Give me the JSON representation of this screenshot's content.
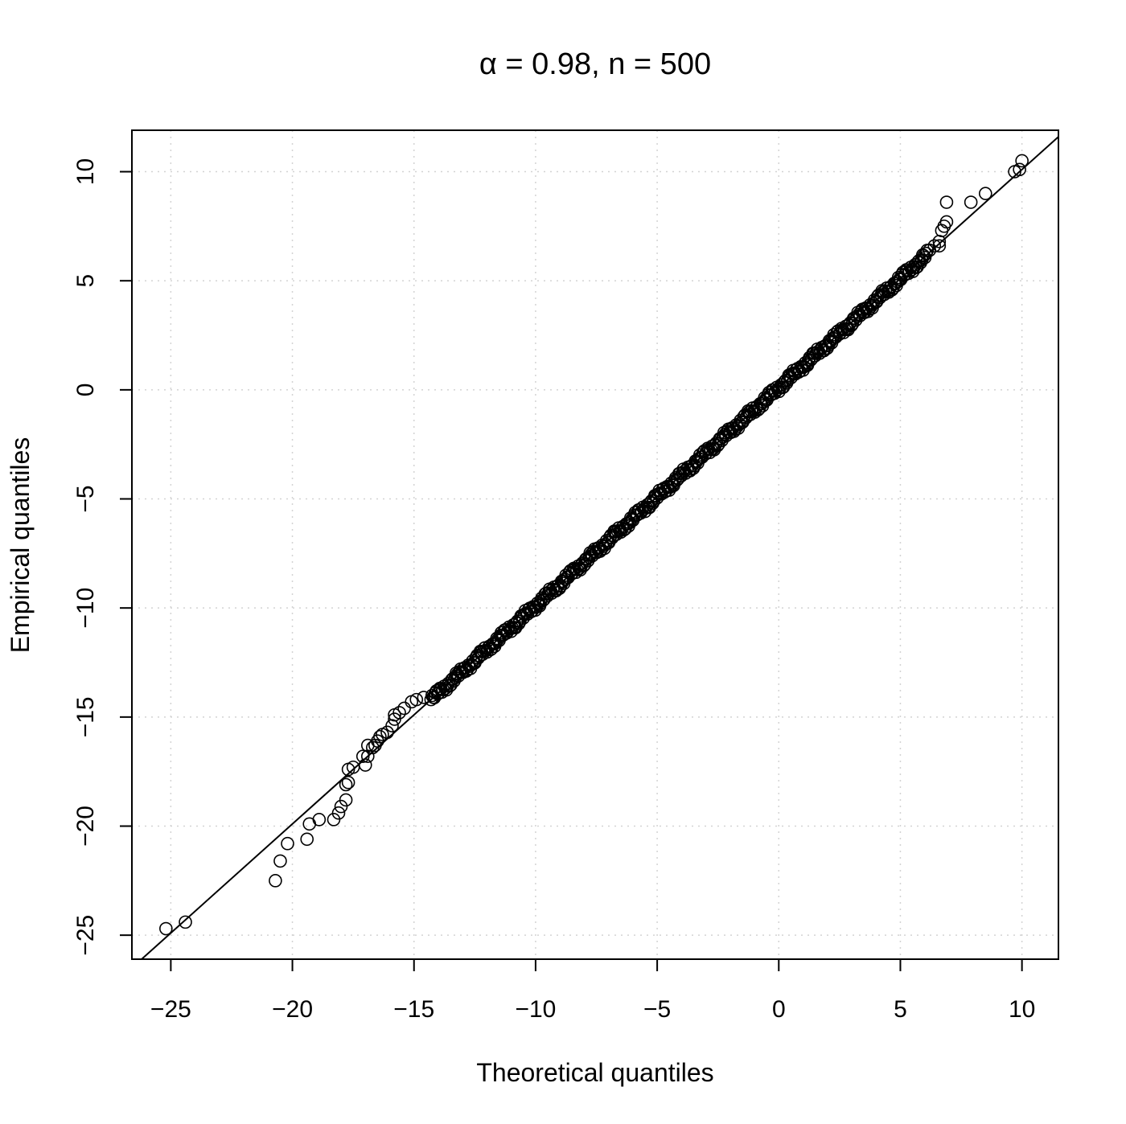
{
  "chart_data": {
    "type": "scatter",
    "title": "α = 0.98, n = 500",
    "xlabel": "Theoretical quantiles",
    "ylabel": "Empirical quantiles",
    "xlim": [
      -26.6,
      11.5
    ],
    "ylim": [
      -26.1,
      11.9
    ],
    "xticks": [
      -25,
      -20,
      -15,
      -10,
      -5,
      0,
      5,
      10
    ],
    "xtick_labels": [
      "−25",
      "−20",
      "−15",
      "−10",
      "−5",
      "0",
      "5",
      "10"
    ],
    "yticks": [
      -25,
      -20,
      -15,
      -10,
      -5,
      0,
      5,
      10
    ],
    "ytick_labels": [
      "−25",
      "−20",
      "−15",
      "−10",
      "−5",
      "0",
      "5",
      "10"
    ],
    "grid": true,
    "reference_line": {
      "intercept": 0.1,
      "slope": 1.0
    },
    "n_points": 500,
    "body_range": {
      "x": [
        -14.3,
        6.1
      ]
    },
    "outlier_points": [
      {
        "x": -25.2,
        "y": -24.7
      },
      {
        "x": -24.4,
        "y": -24.4
      },
      {
        "x": -20.7,
        "y": -22.5
      },
      {
        "x": -20.5,
        "y": -21.6
      },
      {
        "x": -20.2,
        "y": -20.8
      },
      {
        "x": -19.4,
        "y": -20.6
      },
      {
        "x": -19.3,
        "y": -19.9
      },
      {
        "x": -18.9,
        "y": -19.7
      },
      {
        "x": -18.3,
        "y": -19.7
      },
      {
        "x": -18.1,
        "y": -19.4
      },
      {
        "x": -18.0,
        "y": -19.1
      },
      {
        "x": -17.8,
        "y": -18.8
      },
      {
        "x": -17.8,
        "y": -18.1
      },
      {
        "x": -17.7,
        "y": -18.0
      },
      {
        "x": -17.7,
        "y": -17.4
      },
      {
        "x": -17.5,
        "y": -17.3
      },
      {
        "x": -17.0,
        "y": -17.2
      },
      {
        "x": -17.1,
        "y": -16.8
      },
      {
        "x": -16.9,
        "y": -16.8
      },
      {
        "x": -16.9,
        "y": -16.3
      },
      {
        "x": -16.7,
        "y": -16.4
      },
      {
        "x": -16.6,
        "y": -16.3
      },
      {
        "x": -16.5,
        "y": -16.1
      },
      {
        "x": -16.4,
        "y": -15.9
      },
      {
        "x": -16.3,
        "y": -15.8
      },
      {
        "x": -16.1,
        "y": -15.7
      },
      {
        "x": -15.9,
        "y": -15.4
      },
      {
        "x": -15.8,
        "y": -15.1
      },
      {
        "x": -15.8,
        "y": -14.9
      },
      {
        "x": -15.6,
        "y": -14.8
      },
      {
        "x": -15.4,
        "y": -14.6
      },
      {
        "x": -15.1,
        "y": -14.3
      },
      {
        "x": -14.9,
        "y": -14.2
      },
      {
        "x": -14.6,
        "y": -14.1
      },
      {
        "x": 6.2,
        "y": 6.4
      },
      {
        "x": 6.4,
        "y": 6.6
      },
      {
        "x": 6.6,
        "y": 6.8
      },
      {
        "x": 6.6,
        "y": 6.6
      },
      {
        "x": 6.7,
        "y": 7.3
      },
      {
        "x": 6.8,
        "y": 7.5
      },
      {
        "x": 6.9,
        "y": 7.7
      },
      {
        "x": 6.9,
        "y": 8.6
      },
      {
        "x": 7.9,
        "y": 8.6
      },
      {
        "x": 8.5,
        "y": 9.0
      },
      {
        "x": 9.7,
        "y": 10.0
      },
      {
        "x": 9.9,
        "y": 10.1
      },
      {
        "x": 10.0,
        "y": 10.5
      }
    ]
  }
}
